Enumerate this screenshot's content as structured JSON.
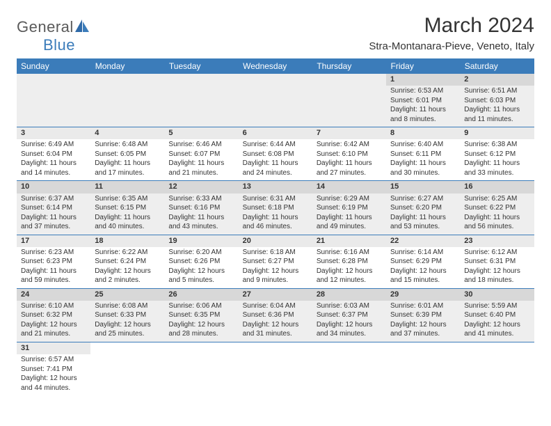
{
  "brand": {
    "name1": "General",
    "name2": "Blue"
  },
  "header": {
    "title": "March 2024",
    "location": "Stra-Montanara-Pieve, Veneto, Italy"
  },
  "colors": {
    "header_bg": "#3b7cba",
    "header_fg": "#ffffff",
    "row_odd_bg": "#eeeeee",
    "row_even_bg": "#ffffff",
    "daynum_odd_bg": "#d8d8d8",
    "daynum_even_bg": "#eaeaea",
    "border": "#3b7cba",
    "text": "#333333",
    "brand_gray": "#5a5a5a",
    "brand_blue": "#3b7cba"
  },
  "calendar": {
    "day_labels": [
      "Sunday",
      "Monday",
      "Tuesday",
      "Wednesday",
      "Thursday",
      "Friday",
      "Saturday"
    ],
    "weeks": [
      [
        null,
        null,
        null,
        null,
        null,
        {
          "n": "1",
          "sunrise": "Sunrise: 6:53 AM",
          "sunset": "Sunset: 6:01 PM",
          "daylight": "Daylight: 11 hours and 8 minutes."
        },
        {
          "n": "2",
          "sunrise": "Sunrise: 6:51 AM",
          "sunset": "Sunset: 6:03 PM",
          "daylight": "Daylight: 11 hours and 11 minutes."
        }
      ],
      [
        {
          "n": "3",
          "sunrise": "Sunrise: 6:49 AM",
          "sunset": "Sunset: 6:04 PM",
          "daylight": "Daylight: 11 hours and 14 minutes."
        },
        {
          "n": "4",
          "sunrise": "Sunrise: 6:48 AM",
          "sunset": "Sunset: 6:05 PM",
          "daylight": "Daylight: 11 hours and 17 minutes."
        },
        {
          "n": "5",
          "sunrise": "Sunrise: 6:46 AM",
          "sunset": "Sunset: 6:07 PM",
          "daylight": "Daylight: 11 hours and 21 minutes."
        },
        {
          "n": "6",
          "sunrise": "Sunrise: 6:44 AM",
          "sunset": "Sunset: 6:08 PM",
          "daylight": "Daylight: 11 hours and 24 minutes."
        },
        {
          "n": "7",
          "sunrise": "Sunrise: 6:42 AM",
          "sunset": "Sunset: 6:10 PM",
          "daylight": "Daylight: 11 hours and 27 minutes."
        },
        {
          "n": "8",
          "sunrise": "Sunrise: 6:40 AM",
          "sunset": "Sunset: 6:11 PM",
          "daylight": "Daylight: 11 hours and 30 minutes."
        },
        {
          "n": "9",
          "sunrise": "Sunrise: 6:38 AM",
          "sunset": "Sunset: 6:12 PM",
          "daylight": "Daylight: 11 hours and 33 minutes."
        }
      ],
      [
        {
          "n": "10",
          "sunrise": "Sunrise: 6:37 AM",
          "sunset": "Sunset: 6:14 PM",
          "daylight": "Daylight: 11 hours and 37 minutes."
        },
        {
          "n": "11",
          "sunrise": "Sunrise: 6:35 AM",
          "sunset": "Sunset: 6:15 PM",
          "daylight": "Daylight: 11 hours and 40 minutes."
        },
        {
          "n": "12",
          "sunrise": "Sunrise: 6:33 AM",
          "sunset": "Sunset: 6:16 PM",
          "daylight": "Daylight: 11 hours and 43 minutes."
        },
        {
          "n": "13",
          "sunrise": "Sunrise: 6:31 AM",
          "sunset": "Sunset: 6:18 PM",
          "daylight": "Daylight: 11 hours and 46 minutes."
        },
        {
          "n": "14",
          "sunrise": "Sunrise: 6:29 AM",
          "sunset": "Sunset: 6:19 PM",
          "daylight": "Daylight: 11 hours and 49 minutes."
        },
        {
          "n": "15",
          "sunrise": "Sunrise: 6:27 AM",
          "sunset": "Sunset: 6:20 PM",
          "daylight": "Daylight: 11 hours and 53 minutes."
        },
        {
          "n": "16",
          "sunrise": "Sunrise: 6:25 AM",
          "sunset": "Sunset: 6:22 PM",
          "daylight": "Daylight: 11 hours and 56 minutes."
        }
      ],
      [
        {
          "n": "17",
          "sunrise": "Sunrise: 6:23 AM",
          "sunset": "Sunset: 6:23 PM",
          "daylight": "Daylight: 11 hours and 59 minutes."
        },
        {
          "n": "18",
          "sunrise": "Sunrise: 6:22 AM",
          "sunset": "Sunset: 6:24 PM",
          "daylight": "Daylight: 12 hours and 2 minutes."
        },
        {
          "n": "19",
          "sunrise": "Sunrise: 6:20 AM",
          "sunset": "Sunset: 6:26 PM",
          "daylight": "Daylight: 12 hours and 5 minutes."
        },
        {
          "n": "20",
          "sunrise": "Sunrise: 6:18 AM",
          "sunset": "Sunset: 6:27 PM",
          "daylight": "Daylight: 12 hours and 9 minutes."
        },
        {
          "n": "21",
          "sunrise": "Sunrise: 6:16 AM",
          "sunset": "Sunset: 6:28 PM",
          "daylight": "Daylight: 12 hours and 12 minutes."
        },
        {
          "n": "22",
          "sunrise": "Sunrise: 6:14 AM",
          "sunset": "Sunset: 6:29 PM",
          "daylight": "Daylight: 12 hours and 15 minutes."
        },
        {
          "n": "23",
          "sunrise": "Sunrise: 6:12 AM",
          "sunset": "Sunset: 6:31 PM",
          "daylight": "Daylight: 12 hours and 18 minutes."
        }
      ],
      [
        {
          "n": "24",
          "sunrise": "Sunrise: 6:10 AM",
          "sunset": "Sunset: 6:32 PM",
          "daylight": "Daylight: 12 hours and 21 minutes."
        },
        {
          "n": "25",
          "sunrise": "Sunrise: 6:08 AM",
          "sunset": "Sunset: 6:33 PM",
          "daylight": "Daylight: 12 hours and 25 minutes."
        },
        {
          "n": "26",
          "sunrise": "Sunrise: 6:06 AM",
          "sunset": "Sunset: 6:35 PM",
          "daylight": "Daylight: 12 hours and 28 minutes."
        },
        {
          "n": "27",
          "sunrise": "Sunrise: 6:04 AM",
          "sunset": "Sunset: 6:36 PM",
          "daylight": "Daylight: 12 hours and 31 minutes."
        },
        {
          "n": "28",
          "sunrise": "Sunrise: 6:03 AM",
          "sunset": "Sunset: 6:37 PM",
          "daylight": "Daylight: 12 hours and 34 minutes."
        },
        {
          "n": "29",
          "sunrise": "Sunrise: 6:01 AM",
          "sunset": "Sunset: 6:39 PM",
          "daylight": "Daylight: 12 hours and 37 minutes."
        },
        {
          "n": "30",
          "sunrise": "Sunrise: 5:59 AM",
          "sunset": "Sunset: 6:40 PM",
          "daylight": "Daylight: 12 hours and 41 minutes."
        }
      ],
      [
        {
          "n": "31",
          "sunrise": "Sunrise: 6:57 AM",
          "sunset": "Sunset: 7:41 PM",
          "daylight": "Daylight: 12 hours and 44 minutes."
        },
        null,
        null,
        null,
        null,
        null,
        null
      ]
    ]
  }
}
